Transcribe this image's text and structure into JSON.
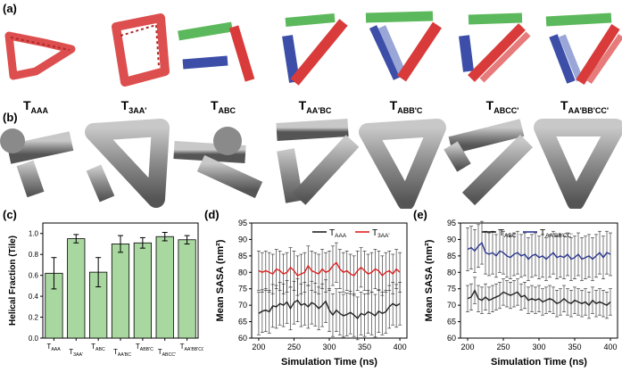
{
  "panels": {
    "a": "(a)",
    "b": "(b)",
    "c": "(c)",
    "d": "(d)",
    "e": "(e)"
  },
  "colors": {
    "red": "#d93b3b",
    "green": "#5cb85c",
    "blue": "#3c4ea8",
    "lightblue": "#9aa6d8",
    "grey": "#8a8a8a",
    "bar": "#a9d7a0",
    "seriesBlack": "#222222",
    "seriesRed": "#e02020",
    "seriesNavy": "#2a3690"
  },
  "structures": [
    {
      "main": "T",
      "sub": "AAA"
    },
    {
      "main": "T",
      "sub": "3AA'"
    },
    {
      "main": "T",
      "sub": "ABC"
    },
    {
      "main": "T",
      "sub": "AA'BC"
    },
    {
      "main": "T",
      "sub": "ABB'C"
    },
    {
      "main": "T",
      "sub": "ABCC'"
    },
    {
      "main": "T",
      "sub": "AA'BB'CC'"
    }
  ],
  "chart_data": [
    {
      "type": "bar",
      "panel": "(c)",
      "categories": [
        "AAA",
        "3AA'",
        "ABC",
        "AA'BC",
        "ABB'C",
        "ABCC'",
        "AA'BB'CC'"
      ],
      "values": [
        0.62,
        0.95,
        0.63,
        0.9,
        0.91,
        0.97,
        0.94
      ],
      "errors": [
        0.15,
        0.04,
        0.14,
        0.08,
        0.05,
        0.04,
        0.04
      ],
      "ylabel": "Helical Fraction (Tile)",
      "ylim": [
        0.0,
        1.1
      ],
      "yticks": [
        "0.0",
        "0.2",
        "0.4",
        "0.6",
        "0.8",
        "1.0"
      ]
    },
    {
      "type": "line",
      "panel": "(d)",
      "xlabel": "Simulation Time (ns)",
      "ylabel": "Mean SASA (nm²)",
      "xlim": [
        190,
        410
      ],
      "ylim": [
        60,
        95
      ],
      "xticks": [
        "200",
        "250",
        "300",
        "350",
        "400"
      ],
      "yticks": [
        "60",
        "65",
        "70",
        "75",
        "80",
        "85",
        "90",
        "95"
      ],
      "legend": "top-right",
      "x": [
        200,
        205,
        210,
        215,
        220,
        225,
        230,
        235,
        240,
        245,
        250,
        255,
        260,
        265,
        270,
        275,
        280,
        285,
        290,
        295,
        300,
        305,
        310,
        315,
        320,
        325,
        330,
        335,
        340,
        345,
        350,
        355,
        360,
        365,
        370,
        375,
        380,
        385,
        390,
        395,
        400
      ],
      "series": [
        {
          "name": "AAA",
          "values": [
            67.5,
            68.2,
            68.5,
            68.0,
            69.8,
            69.5,
            70.5,
            70.0,
            71.0,
            69.0,
            70.8,
            71.5,
            70.0,
            70.5,
            69.5,
            70.8,
            70.2,
            69.0,
            70.0,
            71.2,
            68.5,
            67.0,
            68.5,
            67.5,
            66.8,
            67.2,
            67.8,
            67.0,
            66.0,
            67.5,
            67.0,
            68.0,
            67.5,
            66.8,
            68.2,
            67.5,
            68.0,
            69.5,
            70.5,
            69.8,
            70.5
          ],
          "err": 6.5
        },
        {
          "name": "3AA'",
          "values": [
            80.5,
            80.0,
            80.5,
            80.0,
            79.5,
            81.0,
            80.5,
            79.5,
            80.0,
            81.5,
            80.5,
            79.0,
            79.5,
            80.0,
            82.0,
            80.5,
            80.0,
            79.5,
            81.0,
            80.0,
            80.5,
            82.0,
            83.0,
            81.0,
            80.0,
            80.5,
            79.5,
            79.0,
            80.5,
            81.5,
            80.5,
            79.5,
            80.0,
            81.0,
            80.5,
            79.0,
            80.0,
            80.5,
            79.5,
            81.0,
            80.0
          ],
          "err": 6
        }
      ]
    },
    {
      "type": "line",
      "panel": "(e)",
      "xlabel": "Simulation Time (ns)",
      "ylabel": "Mean SASA (nm²)",
      "xlim": [
        190,
        410
      ],
      "ylim": [
        60,
        95
      ],
      "xticks": [
        "200",
        "250",
        "300",
        "350",
        "400"
      ],
      "yticks": [
        "60",
        "65",
        "70",
        "75",
        "80",
        "85",
        "90",
        "95"
      ],
      "legend": "top-right",
      "x": [
        200,
        205,
        210,
        215,
        220,
        225,
        230,
        235,
        240,
        245,
        250,
        255,
        260,
        265,
        270,
        275,
        280,
        285,
        290,
        295,
        300,
        305,
        310,
        315,
        320,
        325,
        330,
        335,
        340,
        345,
        350,
        355,
        360,
        365,
        370,
        375,
        380,
        385,
        390,
        395,
        400
      ],
      "series": [
        {
          "name": "ABC",
          "values": [
            72.0,
            72.5,
            74.5,
            72.0,
            71.5,
            72.5,
            71.5,
            72.0,
            72.5,
            73.0,
            74.0,
            73.5,
            73.0,
            73.5,
            74.0,
            72.5,
            73.0,
            71.5,
            72.0,
            71.5,
            72.0,
            71.0,
            71.5,
            72.0,
            71.5,
            70.5,
            71.0,
            72.0,
            71.0,
            70.5,
            71.5,
            71.0,
            70.5,
            71.0,
            70.0,
            71.5,
            70.5,
            71.0,
            70.5,
            70.0,
            71.0
          ],
          "err": 4
        },
        {
          "name": "AA'BB'CC'",
          "values": [
            87.0,
            87.5,
            86.5,
            88.0,
            89.0,
            86.0,
            85.5,
            86.0,
            85.0,
            86.5,
            86.0,
            85.0,
            84.5,
            85.5,
            86.0,
            85.0,
            85.5,
            84.0,
            85.0,
            85.5,
            84.5,
            85.0,
            84.0,
            85.0,
            86.0,
            84.5,
            85.0,
            84.5,
            85.5,
            84.0,
            84.5,
            85.5,
            84.0,
            84.5,
            85.0,
            84.0,
            85.0,
            86.0,
            84.5,
            86.0,
            85.5
          ],
          "err": 6.5
        }
      ]
    }
  ]
}
